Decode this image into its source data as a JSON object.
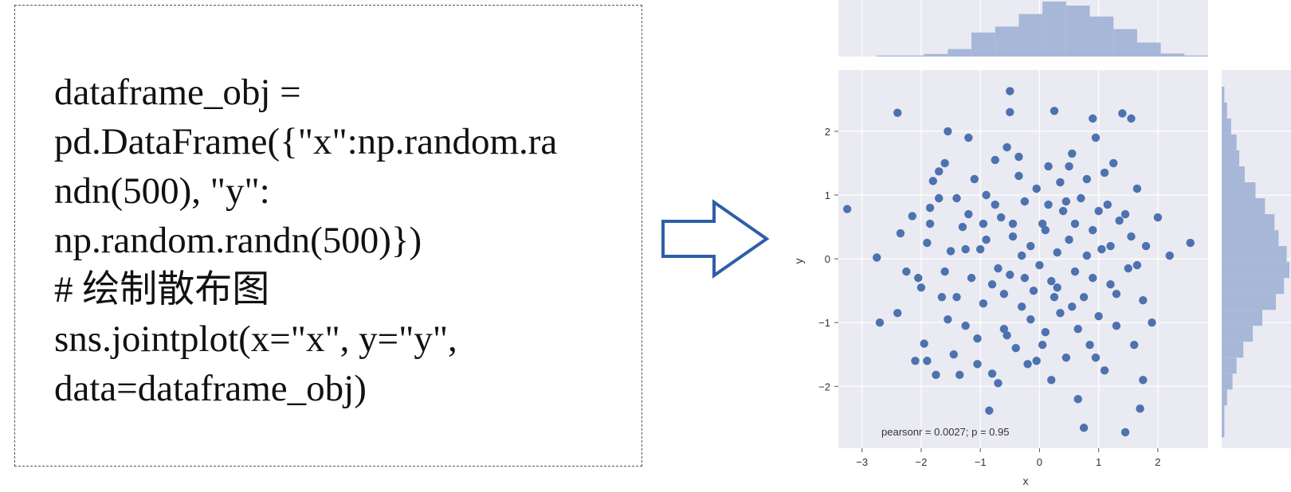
{
  "code": {
    "lines": [
      "dataframe_obj =",
      "pd.DataFrame({\"x\":np.random.ra",
      "ndn(500), \"y\":",
      "np.random.randn(500)})",
      "# 绘制散布图",
      "sns.jointplot(x=\"x\", y=\"y\",",
      "data=dataframe_obj)"
    ]
  },
  "arrow": {
    "icon": "right-arrow-icon",
    "color": "#2e5ea8"
  },
  "chart_data": {
    "type": "scatter",
    "xlabel": "x",
    "ylabel": "y",
    "xlim": [
      -3.4,
      2.85
    ],
    "ylim": [
      -2.97,
      2.96
    ],
    "xticks": [
      -3,
      -2,
      -1,
      0,
      1,
      2
    ],
    "yticks": [
      -2,
      -1,
      0,
      1,
      2
    ],
    "annotation": "pearsonr = 0.0027; p = 0.95",
    "grid": true,
    "colors": {
      "background": "#eaeaf2",
      "points": "#4c72b0",
      "hist": "#a6b7d8",
      "grid": "#ffffff"
    },
    "marginal_x_hist": {
      "bin_edges": [
        -2.75,
        -2.35,
        -1.95,
        -1.55,
        -1.15,
        -0.75,
        -0.35,
        0.05,
        0.45,
        0.85,
        1.25,
        1.65,
        2.05,
        2.45,
        2.85
      ],
      "counts": [
        2,
        2,
        5,
        15,
        48,
        60,
        85,
        110,
        102,
        80,
        55,
        28,
        6,
        2
      ]
    },
    "marginal_y_hist": {
      "bin_edges": [
        -2.8,
        -2.55,
        -2.3,
        -2.05,
        -1.8,
        -1.55,
        -1.3,
        -1.05,
        -0.8,
        -0.55,
        -0.3,
        -0.05,
        0.2,
        0.45,
        0.7,
        0.95,
        1.2,
        1.45,
        1.7,
        1.95,
        2.2,
        2.45,
        2.7
      ],
      "counts": [
        2,
        2,
        4,
        8,
        11,
        16,
        23,
        30,
        40,
        46,
        50,
        48,
        42,
        39,
        32,
        25,
        17,
        13,
        11,
        7,
        4,
        2
      ]
    },
    "points": [
      [
        -3.25,
        0.78
      ],
      [
        -2.75,
        0.02
      ],
      [
        -2.4,
        2.29
      ],
      [
        -2.4,
        -0.85
      ],
      [
        -2.35,
        0.4
      ],
      [
        -2.25,
        -0.2
      ],
      [
        -2.15,
        0.67
      ],
      [
        -2.1,
        -1.6
      ],
      [
        -2.05,
        -0.3
      ],
      [
        -2.0,
        -0.45
      ],
      [
        -1.95,
        -1.33
      ],
      [
        -1.9,
        -1.6
      ],
      [
        -1.85,
        0.8
      ],
      [
        -1.8,
        1.22
      ],
      [
        -1.75,
        -1.82
      ],
      [
        -1.7,
        1.37
      ],
      [
        -1.65,
        -0.6
      ],
      [
        -1.6,
        1.5
      ],
      [
        -1.55,
        2.0
      ],
      [
        -1.5,
        0.12
      ],
      [
        -1.45,
        -1.5
      ],
      [
        -1.4,
        0.95
      ],
      [
        -1.35,
        -1.82
      ],
      [
        -1.3,
        0.5
      ],
      [
        -1.25,
        -1.05
      ],
      [
        -1.2,
        1.9
      ],
      [
        -1.15,
        -0.3
      ],
      [
        -1.1,
        1.25
      ],
      [
        -1.05,
        -1.65
      ],
      [
        -1.0,
        0.15
      ],
      [
        -0.95,
        -0.7
      ],
      [
        -0.9,
        1.0
      ],
      [
        -0.85,
        -2.38
      ],
      [
        -0.8,
        -0.4
      ],
      [
        -0.75,
        1.55
      ],
      [
        -0.7,
        -1.95
      ],
      [
        -0.65,
        0.65
      ],
      [
        -0.6,
        -1.1
      ],
      [
        -0.55,
        1.75
      ],
      [
        -0.5,
        2.63
      ],
      [
        -0.5,
        -0.25
      ],
      [
        -0.45,
        0.35
      ],
      [
        -0.4,
        -1.4
      ],
      [
        -0.35,
        1.3
      ],
      [
        -0.3,
        -0.75
      ],
      [
        -0.25,
        0.9
      ],
      [
        -0.2,
        -1.65
      ],
      [
        -0.15,
        0.2
      ],
      [
        -0.1,
        -0.5
      ],
      [
        -0.05,
        1.1
      ],
      [
        0.0,
        -0.1
      ],
      [
        0.05,
        0.55
      ],
      [
        0.1,
        -1.15
      ],
      [
        0.15,
        1.45
      ],
      [
        0.2,
        -0.35
      ],
      [
        0.25,
        2.32
      ],
      [
        0.3,
        0.1
      ],
      [
        0.35,
        -0.85
      ],
      [
        0.4,
        0.75
      ],
      [
        0.45,
        -1.55
      ],
      [
        0.5,
        0.3
      ],
      [
        0.55,
        1.65
      ],
      [
        0.6,
        -0.2
      ],
      [
        0.65,
        -2.2
      ],
      [
        0.7,
        0.95
      ],
      [
        0.75,
        -0.6
      ],
      [
        0.8,
        1.25
      ],
      [
        0.85,
        -1.35
      ],
      [
        0.9,
        0.45
      ],
      [
        0.95,
        1.9
      ],
      [
        1.0,
        -0.9
      ],
      [
        1.05,
        0.15
      ],
      [
        1.1,
        -1.75
      ],
      [
        1.15,
        0.85
      ],
      [
        1.2,
        -0.4
      ],
      [
        1.25,
        1.5
      ],
      [
        1.3,
        -1.05
      ],
      [
        1.35,
        0.6
      ],
      [
        1.4,
        2.28
      ],
      [
        1.45,
        -2.72
      ],
      [
        1.5,
        -0.15
      ],
      [
        1.55,
        0.35
      ],
      [
        1.6,
        -1.35
      ],
      [
        1.65,
        1.1
      ],
      [
        1.7,
        -2.35
      ],
      [
        1.75,
        -0.65
      ],
      [
        1.8,
        0.2
      ],
      [
        1.9,
        -1.0
      ],
      [
        2.0,
        0.65
      ],
      [
        2.2,
        0.05
      ],
      [
        2.55,
        0.25
      ],
      [
        -2.7,
        -1.0
      ],
      [
        -1.9,
        0.25
      ],
      [
        -1.6,
        -0.2
      ],
      [
        -1.2,
        0.7
      ],
      [
        -0.9,
        0.3
      ],
      [
        -0.6,
        -0.55
      ],
      [
        -0.3,
        0.05
      ],
      [
        0.1,
        0.45
      ],
      [
        0.3,
        -0.45
      ],
      [
        0.6,
        0.55
      ],
      [
        0.9,
        -0.3
      ],
      [
        1.2,
        0.2
      ],
      [
        -0.8,
        -1.8
      ],
      [
        0.2,
        -1.9
      ],
      [
        0.75,
        -2.65
      ],
      [
        1.75,
        -1.9
      ],
      [
        1.55,
        2.2
      ],
      [
        -0.5,
        2.3
      ],
      [
        0.9,
        2.2
      ],
      [
        -1.4,
        -0.6
      ],
      [
        -0.7,
        -0.15
      ],
      [
        0.45,
        0.9
      ],
      [
        -0.15,
        -0.95
      ],
      [
        0.55,
        -0.75
      ],
      [
        -0.95,
        0.55
      ],
      [
        1.1,
        1.35
      ],
      [
        -1.7,
        0.95
      ],
      [
        0.05,
        -1.35
      ],
      [
        -0.35,
        1.6
      ],
      [
        1.3,
        -0.55
      ],
      [
        -1.05,
        -1.25
      ],
      [
        0.35,
        1.2
      ],
      [
        -0.55,
        -1.2
      ],
      [
        0.8,
        0.05
      ],
      [
        -1.25,
        0.15
      ],
      [
        0.15,
        0.85
      ],
      [
        1.45,
        0.7
      ],
      [
        -0.25,
        -0.3
      ],
      [
        0.65,
        -1.1
      ],
      [
        -0.75,
        0.85
      ],
      [
        1.0,
        0.75
      ],
      [
        -1.55,
        -0.95
      ],
      [
        0.25,
        -0.6
      ],
      [
        -0.45,
        0.55
      ],
      [
        1.65,
        -0.1
      ],
      [
        -0.05,
        -1.6
      ],
      [
        0.5,
        1.45
      ],
      [
        -1.85,
        0.55
      ],
      [
        0.95,
        -1.55
      ]
    ]
  }
}
